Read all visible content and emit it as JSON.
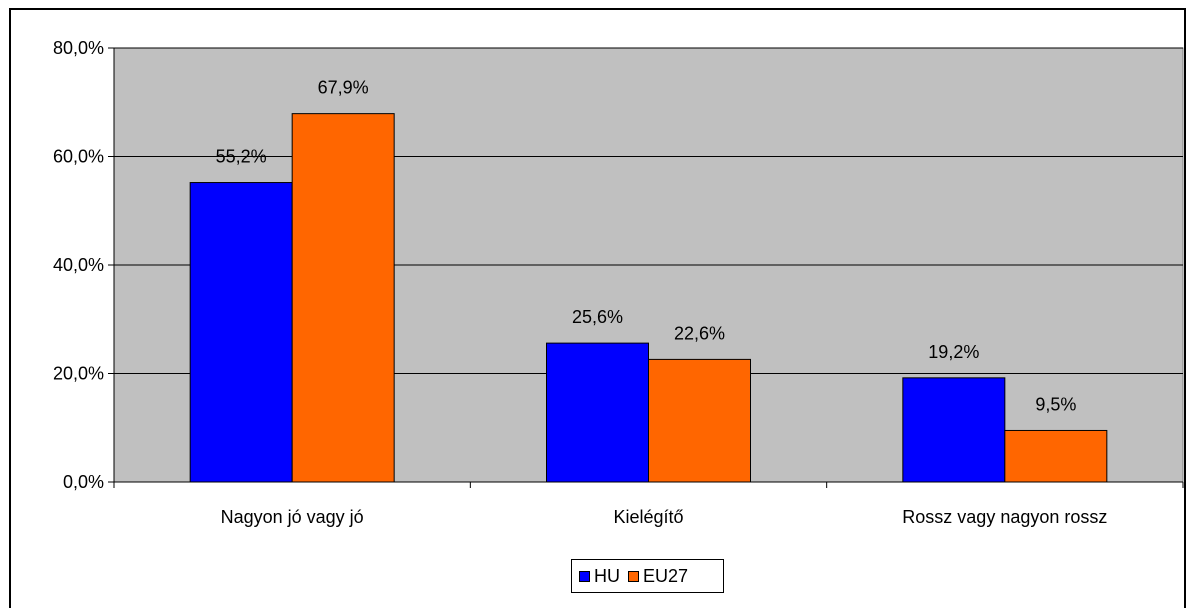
{
  "chart_data": {
    "type": "bar",
    "categories": [
      "Nagyon jó vagy jó",
      "Kielégítő",
      "Rossz vagy nagyon rossz"
    ],
    "series": [
      {
        "name": "HU",
        "values": [
          55.2,
          25.6,
          19.2
        ],
        "labels": [
          "55,2%",
          "25,6%",
          "19,2%"
        ],
        "color": "#0000FF"
      },
      {
        "name": "EU27",
        "values": [
          67.9,
          22.6,
          9.5
        ],
        "labels": [
          "67,9%",
          "22,6%",
          "9,5%"
        ],
        "color": "#FF6600"
      }
    ],
    "y_ticks": [
      0,
      20,
      40,
      60,
      80
    ],
    "y_tick_labels": [
      "0,0%",
      "20,0%",
      "40,0%",
      "60,0%",
      "80,0%"
    ],
    "ylim": [
      0,
      80
    ],
    "grid": true,
    "plot_background": "#C0C0C0",
    "legend_position": "bottom"
  }
}
